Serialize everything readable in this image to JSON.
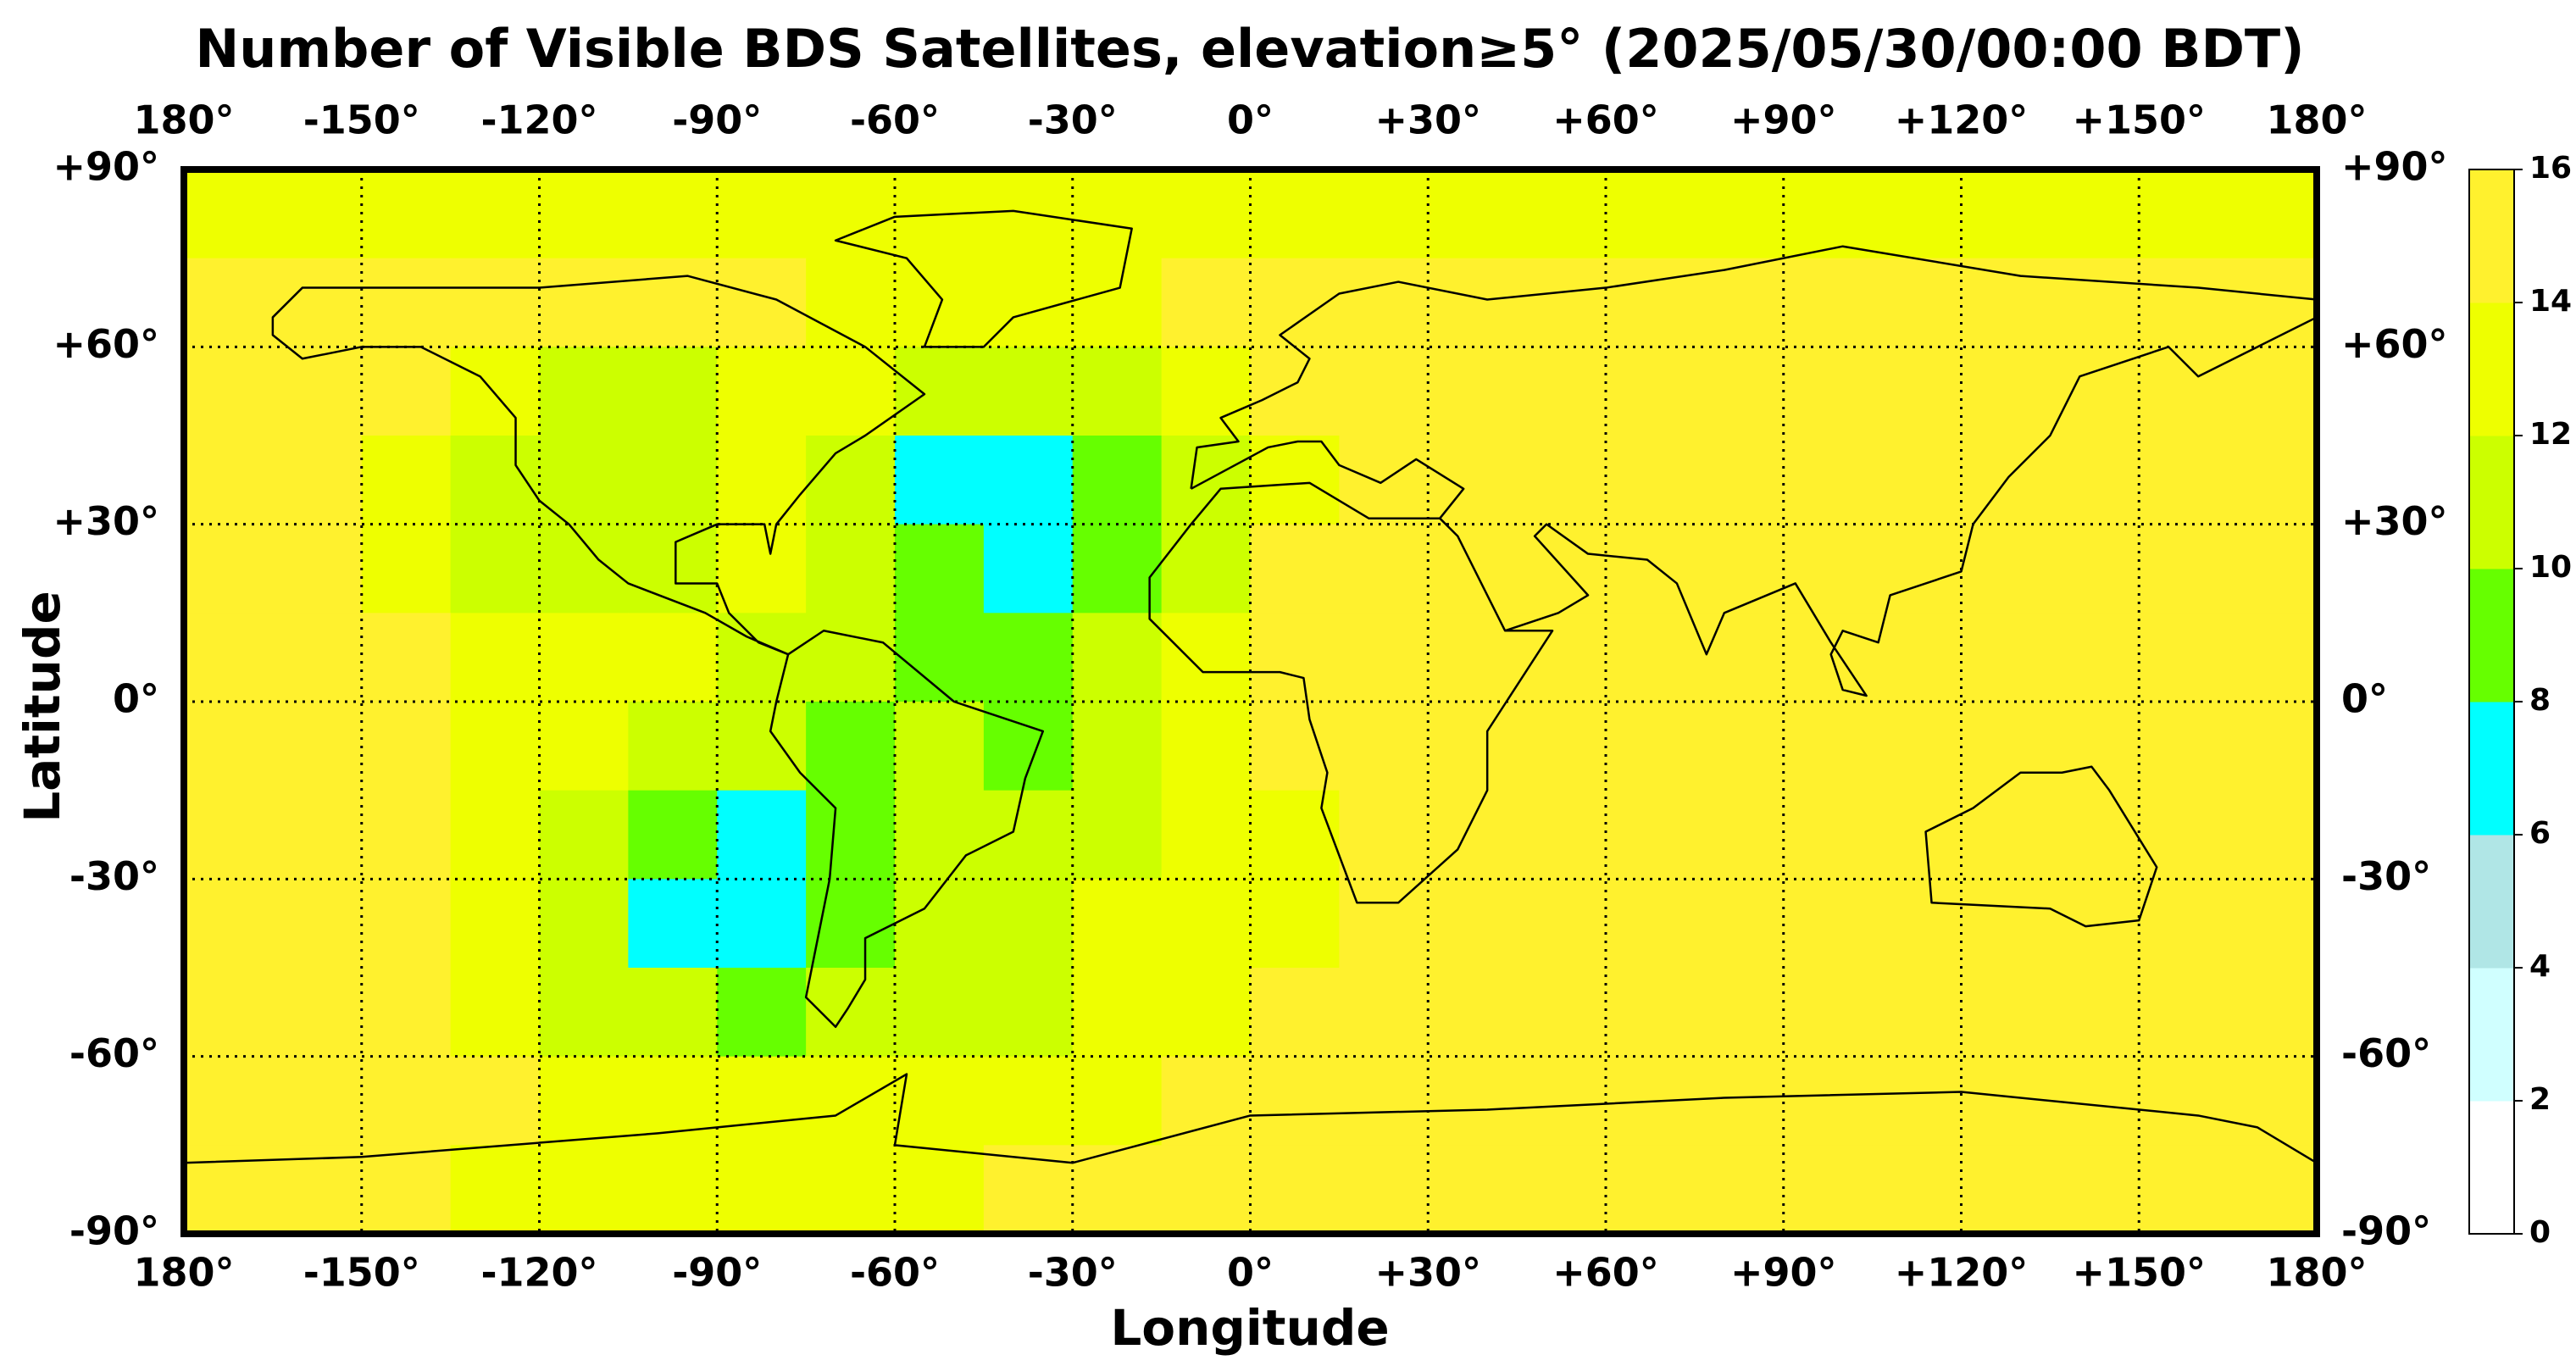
{
  "chart_data": {
    "type": "heatmap",
    "title": "Number of Visible BDS Satellites, elevation≥5° (2025/05/30/00:00 BDT)",
    "x_label": "Longitude",
    "y_label": "Latitude",
    "xlim": [
      -180,
      180
    ],
    "ylim": [
      -90,
      90
    ],
    "xticks": [
      {
        "value": -180,
        "label": "180°"
      },
      {
        "value": -150,
        "label": "-150°"
      },
      {
        "value": -120,
        "label": "-120°"
      },
      {
        "value": -90,
        "label": "-90°"
      },
      {
        "value": -60,
        "label": "-60°"
      },
      {
        "value": -30,
        "label": "-30°"
      },
      {
        "value": 0,
        "label": "0°"
      },
      {
        "value": 30,
        "label": "+30°"
      },
      {
        "value": 60,
        "label": "+60°"
      },
      {
        "value": 90,
        "label": "+90°"
      },
      {
        "value": 120,
        "label": "+120°"
      },
      {
        "value": 150,
        "label": "+150°"
      },
      {
        "value": 180,
        "label": "180°"
      }
    ],
    "yticks": [
      {
        "value": 90,
        "label": "+90°"
      },
      {
        "value": 60,
        "label": "+60°"
      },
      {
        "value": 30,
        "label": "+30°"
      },
      {
        "value": 0,
        "label": "0°"
      },
      {
        "value": -30,
        "label": "-30°"
      },
      {
        "value": -60,
        "label": "-60°"
      },
      {
        "value": -90,
        "label": "-90°"
      }
    ],
    "grid": true,
    "x": [
      -172.5,
      -157.5,
      -142.5,
      -127.5,
      -112.5,
      -97.5,
      -82.5,
      -67.5,
      -52.5,
      -37.5,
      -22.5,
      -7.5,
      7.5,
      22.5,
      37.5,
      52.5,
      67.5,
      82.5,
      97.5,
      112.5,
      127.5,
      142.5,
      157.5,
      172.5
    ],
    "y": [
      82.5,
      67.5,
      52.5,
      37.5,
      22.5,
      7.5,
      -7.5,
      -22.5,
      -37.5,
      -52.5,
      -67.5,
      -82.5
    ],
    "values": [
      [
        13,
        13,
        13,
        13,
        13,
        13,
        13,
        13,
        13,
        13,
        13,
        13,
        13,
        13,
        13,
        13,
        13,
        13,
        13,
        13,
        13,
        13,
        13,
        13
      ],
      [
        15,
        15,
        15,
        15,
        15,
        15,
        15,
        13,
        13,
        13,
        13,
        15,
        15,
        15,
        15,
        15,
        15,
        15,
        15,
        15,
        15,
        15,
        15,
        15
      ],
      [
        15,
        15,
        15,
        13,
        11,
        11,
        13,
        13,
        11,
        11,
        11,
        13,
        15,
        15,
        15,
        15,
        15,
        15,
        15,
        15,
        15,
        15,
        15,
        15
      ],
      [
        15,
        15,
        13,
        11,
        11,
        11,
        13,
        11,
        7,
        7,
        9,
        11,
        13,
        15,
        15,
        15,
        15,
        15,
        15,
        15,
        15,
        15,
        15,
        15
      ],
      [
        15,
        15,
        13,
        11,
        11,
        11,
        13,
        11,
        9,
        7,
        9,
        11,
        15,
        15,
        15,
        15,
        15,
        15,
        15,
        15,
        15,
        15,
        15,
        15
      ],
      [
        15,
        15,
        15,
        13,
        13,
        13,
        11,
        11,
        9,
        9,
        11,
        13,
        15,
        15,
        15,
        15,
        15,
        15,
        15,
        15,
        15,
        15,
        15,
        15
      ],
      [
        15,
        15,
        15,
        13,
        13,
        11,
        11,
        9,
        11,
        9,
        11,
        13,
        15,
        15,
        15,
        15,
        15,
        15,
        15,
        15,
        15,
        15,
        15,
        15
      ],
      [
        15,
        15,
        15,
        13,
        11,
        9,
        7,
        9,
        11,
        11,
        11,
        13,
        13,
        15,
        15,
        15,
        15,
        15,
        15,
        15,
        15,
        15,
        15,
        15
      ],
      [
        15,
        15,
        15,
        13,
        11,
        7,
        7,
        9,
        11,
        11,
        13,
        13,
        13,
        15,
        15,
        15,
        15,
        15,
        15,
        15,
        15,
        15,
        15,
        15
      ],
      [
        15,
        15,
        15,
        13,
        11,
        11,
        9,
        11,
        11,
        11,
        13,
        13,
        15,
        15,
        15,
        15,
        15,
        15,
        15,
        15,
        15,
        15,
        15,
        15
      ],
      [
        15,
        15,
        15,
        15,
        13,
        13,
        13,
        13,
        13,
        13,
        13,
        15,
        15,
        15,
        15,
        15,
        15,
        15,
        15,
        15,
        15,
        15,
        15,
        15
      ],
      [
        15,
        15,
        15,
        13,
        13,
        13,
        13,
        13,
        13,
        15,
        15,
        15,
        15,
        15,
        15,
        15,
        15,
        15,
        15,
        15,
        15,
        15,
        15,
        15
      ]
    ],
    "colorbar": {
      "ticks": [
        0,
        2,
        4,
        6,
        8,
        10,
        12,
        14,
        16
      ],
      "colors": [
        "#ffffff",
        "#d0ffff",
        "#b0e6e6",
        "#00ffff",
        "#66ff00",
        "#ccff00",
        "#eeff00",
        "#fff12e"
      ]
    }
  }
}
